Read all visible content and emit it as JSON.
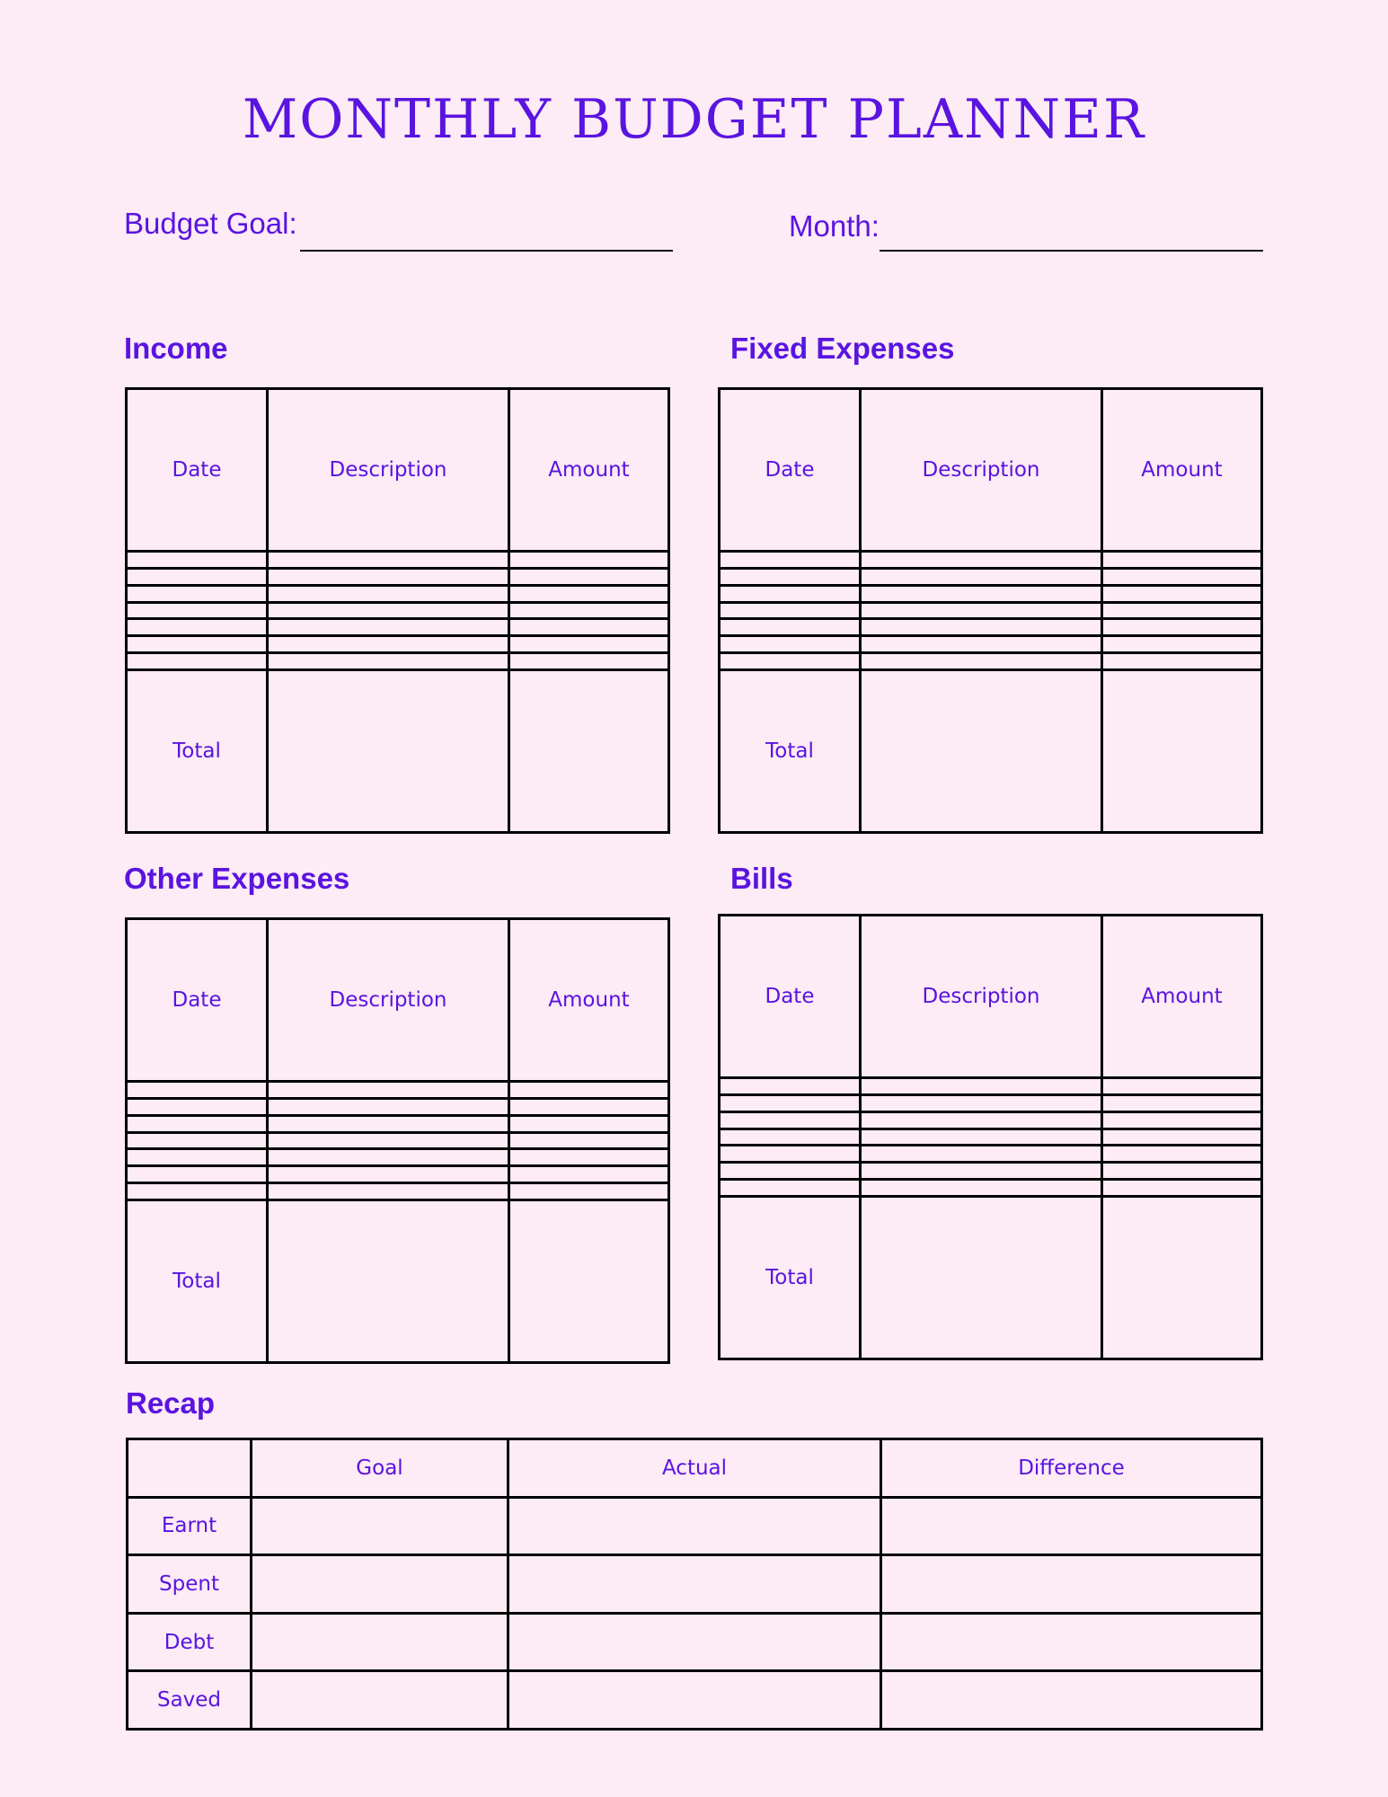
{
  "title": "MONTHLY BUDGET PLANNER",
  "fields": {
    "budget_goal_label": "Budget Goal:",
    "month_label": "Month:"
  },
  "colors": {
    "accent": "#5a14e0",
    "background": "#fdebf5",
    "border": "#000000"
  },
  "sections": [
    {
      "heading": "Income",
      "columns": [
        "Date",
        "Description",
        "Amount"
      ],
      "total_label": "Total"
    },
    {
      "heading": "Fixed Expenses",
      "columns": [
        "Date",
        "Description",
        "Amount"
      ],
      "total_label": "Total"
    },
    {
      "heading": "Other Expenses",
      "columns": [
        "Date",
        "Description",
        "Amount"
      ],
      "total_label": "Total"
    },
    {
      "heading": "Bills",
      "columns": [
        "Date",
        "Description",
        "Amount"
      ],
      "total_label": "Total"
    }
  ],
  "recap": {
    "heading": "Recap",
    "columns": [
      "",
      "Goal",
      "Actual",
      "Difference"
    ],
    "rows": [
      "Earnt",
      "Spent",
      "Debt",
      "Saved"
    ]
  }
}
